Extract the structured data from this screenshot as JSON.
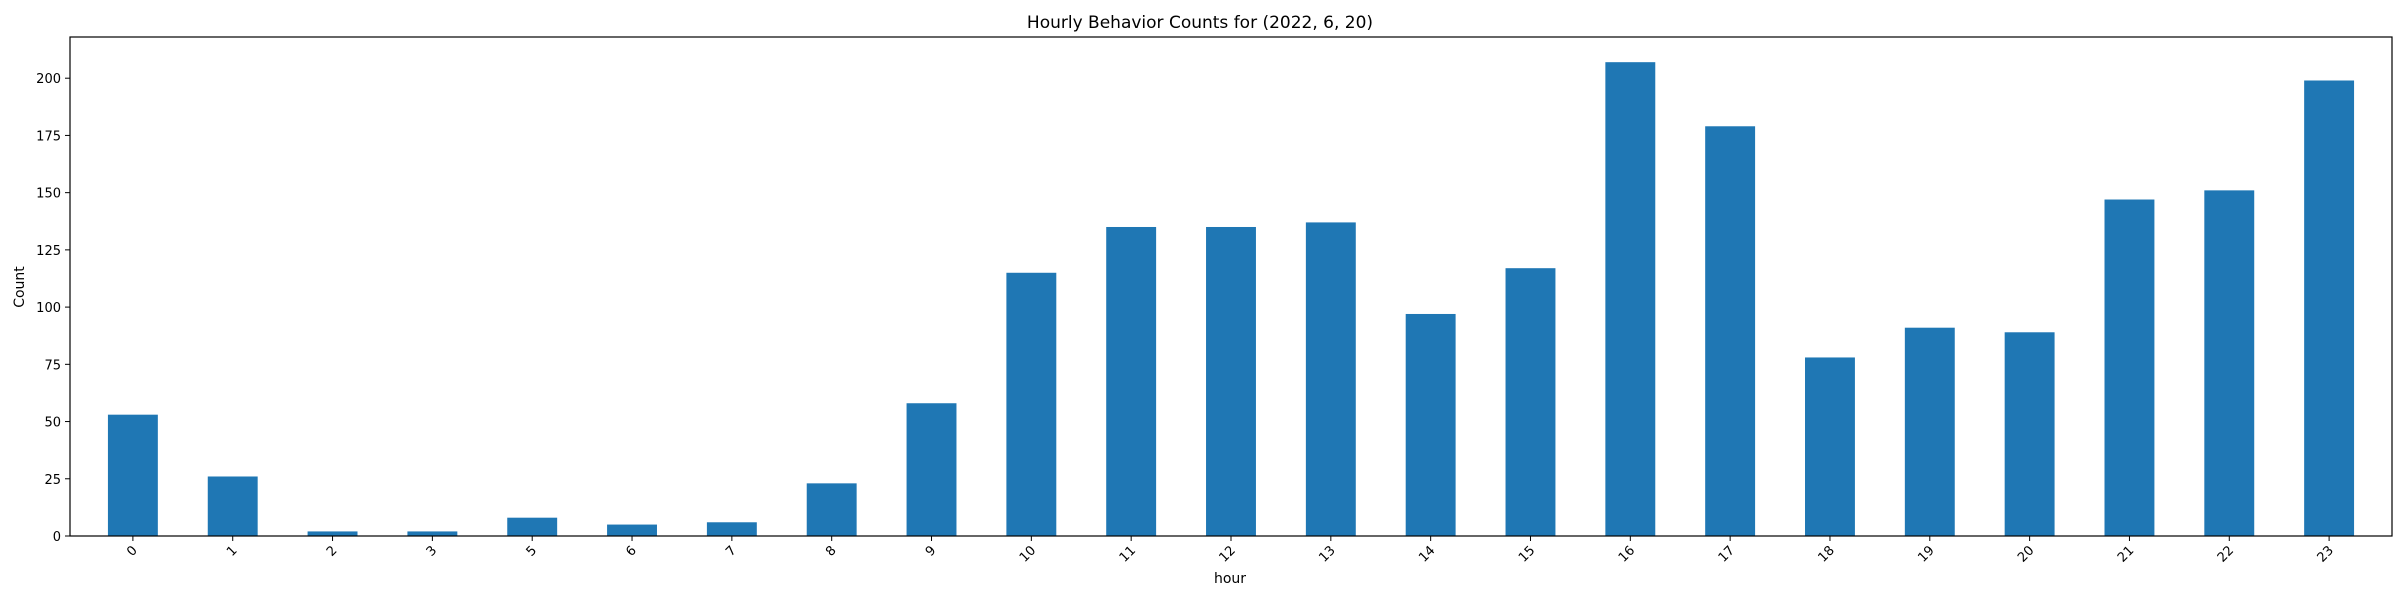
{
  "chart_data": {
    "type": "bar",
    "title": "Hourly Behavior Counts for (2022, 6, 20)",
    "xlabel": "hour",
    "ylabel": "Count",
    "categories": [
      "0",
      "1",
      "2",
      "3",
      "5",
      "6",
      "7",
      "8",
      "9",
      "10",
      "11",
      "12",
      "13",
      "14",
      "15",
      "16",
      "17",
      "18",
      "19",
      "20",
      "21",
      "22",
      "23"
    ],
    "values": [
      53,
      26,
      2,
      2,
      8,
      5,
      6,
      23,
      58,
      115,
      135,
      135,
      137,
      97,
      117,
      207,
      179,
      78,
      91,
      89,
      147,
      151,
      199
    ],
    "ylim": [
      0,
      218
    ],
    "yticks": [
      "0",
      "25",
      "50",
      "75",
      "100",
      "125",
      "150",
      "175",
      "200"
    ],
    "grid": false,
    "legend": "none",
    "bar_color": "#1f77b4"
  }
}
